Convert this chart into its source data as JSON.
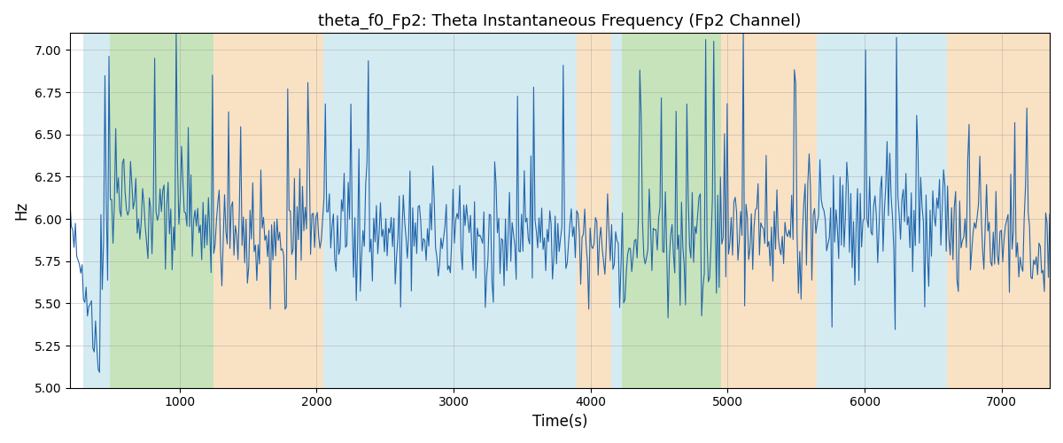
{
  "title": "theta_f0_Fp2: Theta Instantaneous Frequency (Fp2 Channel)",
  "xlabel": "Time(s)",
  "ylabel": "Hz",
  "ylim": [
    5.0,
    7.1
  ],
  "xlim": [
    200,
    7350
  ],
  "line_color": "#2166ac",
  "line_width": 0.8,
  "bg_bands": [
    {
      "xmin": 300,
      "xmax": 490,
      "color": "#add8e6",
      "alpha": 0.5
    },
    {
      "xmin": 490,
      "xmax": 1250,
      "color": "#90c978",
      "alpha": 0.5
    },
    {
      "xmin": 1250,
      "xmax": 2050,
      "color": "#f5c48a",
      "alpha": 0.5
    },
    {
      "xmin": 2050,
      "xmax": 3900,
      "color": "#add8e6",
      "alpha": 0.5
    },
    {
      "xmin": 3900,
      "xmax": 4150,
      "color": "#f5c48a",
      "alpha": 0.5
    },
    {
      "xmin": 4150,
      "xmax": 4230,
      "color": "#add8e6",
      "alpha": 0.5
    },
    {
      "xmin": 4230,
      "xmax": 4950,
      "color": "#90c978",
      "alpha": 0.5
    },
    {
      "xmin": 4950,
      "xmax": 5650,
      "color": "#f5c48a",
      "alpha": 0.5
    },
    {
      "xmin": 5650,
      "xmax": 6600,
      "color": "#add8e6",
      "alpha": 0.5
    },
    {
      "xmin": 6600,
      "xmax": 7350,
      "color": "#f5c48a",
      "alpha": 0.5
    }
  ],
  "yticks": [
    5.0,
    5.25,
    5.5,
    5.75,
    6.0,
    6.25,
    6.5,
    6.75,
    7.0
  ],
  "xticks": [
    1000,
    2000,
    3000,
    4000,
    5000,
    6000,
    7000
  ],
  "n_points": 730,
  "x_start": 200,
  "x_end": 7350,
  "seed": 77
}
